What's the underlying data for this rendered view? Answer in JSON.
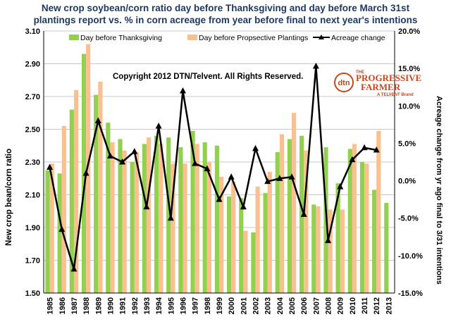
{
  "chart_data": {
    "type": "bar",
    "title_lines": [
      "New crop soybean/corn ratio day before Thanksgiving and day before March 31st",
      "plantings  report vs. % in corn  acreage from year before final to next year's intentions"
    ],
    "ylabel_left": "New crop bean/corn ratio",
    "ylabel_right": "Acreage change from  yr ago final to 3/31 intentions",
    "categories": [
      "1985",
      "1986",
      "1987",
      "1988",
      "1989",
      "1990",
      "1991",
      "1992",
      "1993",
      "1994",
      "1995",
      "1996",
      "1997",
      "1998",
      "1999",
      "2000",
      "2001",
      "2002",
      "2003",
      "2004",
      "2005",
      "2006",
      "2007",
      "2008",
      "2009",
      "2010",
      "2011",
      "2012",
      "2013"
    ],
    "ylim_left": [
      1.5,
      3.1
    ],
    "yticks_left": [
      "1.50",
      "1.70",
      "1.90",
      "2.10",
      "2.30",
      "2.50",
      "2.70",
      "2.90",
      "3.10"
    ],
    "ylim_right": [
      -15.0,
      20.0
    ],
    "yticks_right": [
      "-15.0%",
      "-10.0%",
      "-5.0%",
      "0.0%",
      "5.0%",
      "10.0%",
      "15.0%",
      "20.0%"
    ],
    "series": [
      {
        "name": "Day before Thanksgiving",
        "axis": "left",
        "color": "#92d050",
        "values": [
          2.25,
          2.23,
          2.62,
          2.96,
          2.71,
          2.54,
          2.44,
          2.3,
          2.41,
          2.46,
          2.45,
          2.39,
          2.49,
          2.42,
          2.4,
          2.09,
          2.08,
          1.87,
          2.11,
          2.36,
          2.44,
          2.46,
          2.04,
          2.39,
          2.17,
          2.38,
          2.3,
          2.13,
          2.05
        ]
      },
      {
        "name": "Day before Propsective  Plantings",
        "axis": "left",
        "color": "#fac090",
        "values": [
          2.29,
          2.52,
          2.74,
          3.02,
          2.79,
          2.42,
          2.37,
          2.36,
          2.45,
          2.41,
          2.29,
          2.29,
          2.41,
          2.3,
          2.21,
          2.18,
          1.88,
          2.15,
          2.24,
          2.47,
          2.6,
          2.37,
          2.03,
          2.01,
          2.01,
          2.41,
          2.29,
          2.49,
          null
        ]
      },
      {
        "name": "Acreage change",
        "axis": "right",
        "type": "line",
        "color": "#000000",
        "values": [
          1.8,
          -6.5,
          -11.8,
          1.0,
          8.0,
          3.3,
          2.5,
          3.9,
          -3.5,
          7.3,
          -5.0,
          12.0,
          2.3,
          1.6,
          -2.5,
          0.5,
          -3.5,
          4.3,
          -0.1,
          0.3,
          0.5,
          -4.5,
          15.3,
          -8.0,
          -0.8,
          2.8,
          4.4,
          4.1,
          null
        ]
      }
    ],
    "legend_position": "top",
    "grid": true,
    "annotations": [
      "Copyright 2012 DTN/Telvent. All Rights Reserved."
    ]
  },
  "logo": {
    "mark": "dtn",
    "line1": "THE",
    "line2": "PROGRESSIVE",
    "line3": "FARMER",
    "line4": "A TELVENT Brand"
  }
}
